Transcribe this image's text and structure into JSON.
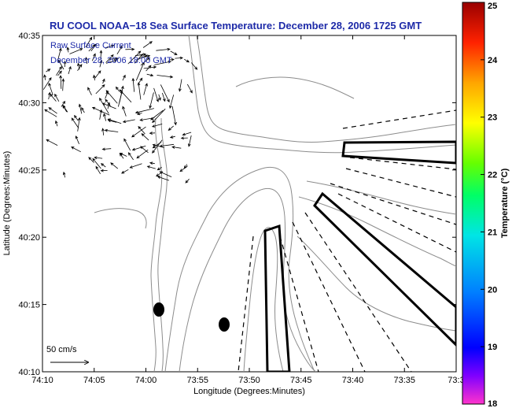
{
  "title": "RU COOL  NOAA−18  Sea Surface Temperature:  December 28, 2006 1725 GMT",
  "inset": {
    "line1": "Raw Surface Current",
    "line2": "December 28, 2006 18:00 GMT"
  },
  "scale_label": "50 cm/s",
  "axes": {
    "xlabel": "Longitude (Degrees:Minutes)",
    "ylabel": "Latitude (Degrees:Minutes)",
    "xticks": [
      "74:10",
      "74:05",
      "74:00",
      "73:55",
      "73:50",
      "73:45",
      "73:40",
      "73:35",
      "73:3"
    ],
    "yticks": [
      "40:35",
      "40:30",
      "40:25",
      "40:20",
      "40:15",
      "40:10"
    ]
  },
  "colorbar": {
    "label": "Temperature (°C)",
    "ticks": [
      "25",
      "24",
      "23",
      "22",
      "21",
      "20",
      "19",
      "18"
    ],
    "min": 18,
    "max": 25
  },
  "colors": {
    "title": "#1d2aa8",
    "coast": "#8c8c8c",
    "markers": "#000000"
  }
}
